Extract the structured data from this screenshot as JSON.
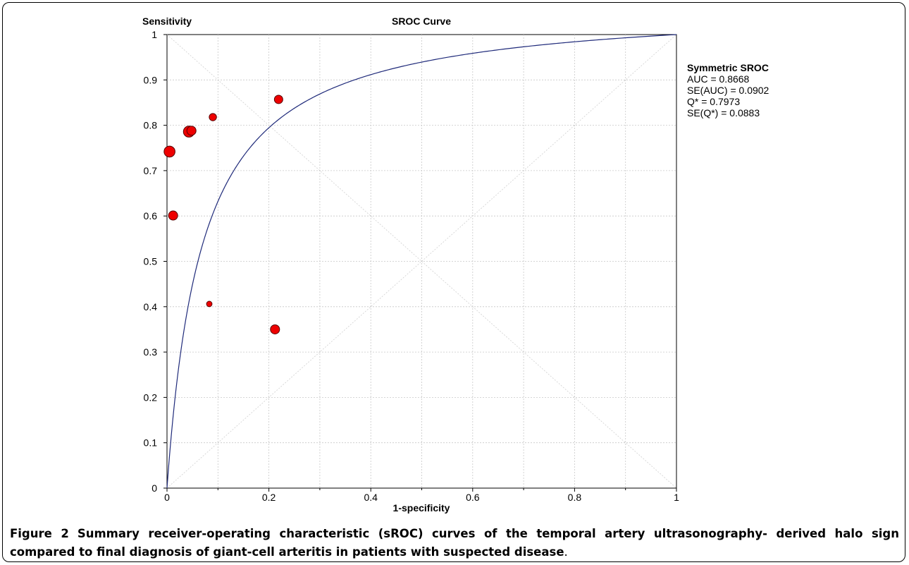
{
  "chart_data": {
    "type": "scatter",
    "title": "SROC Curve",
    "ylabel": "Sensitivity",
    "xlabel": "1-specificity",
    "xlim": [
      0,
      1
    ],
    "ylim": [
      0,
      1
    ],
    "grid": true,
    "x_ticks": [
      "0",
      "0.2",
      "0.4",
      "0.6",
      "0.8",
      "1"
    ],
    "y_ticks": [
      "0",
      "0.1",
      "0.2",
      "0.3",
      "0.4",
      "0.5",
      "0.6",
      "0.7",
      "0.8",
      "0.9",
      "1"
    ],
    "points": [
      {
        "x": 0.005,
        "y": 0.742,
        "size": 3
      },
      {
        "x": 0.012,
        "y": 0.601,
        "size": 2.5
      },
      {
        "x": 0.043,
        "y": 0.786,
        "size": 3
      },
      {
        "x": 0.048,
        "y": 0.788,
        "size": 2.5
      },
      {
        "x": 0.09,
        "y": 0.818,
        "size": 2
      },
      {
        "x": 0.083,
        "y": 0.406,
        "size": 1.5
      },
      {
        "x": 0.212,
        "y": 0.35,
        "size": 2.5
      },
      {
        "x": 0.219,
        "y": 0.857,
        "size": 2.3
      }
    ],
    "curve": {
      "type": "symmetric-sroc",
      "auc": 0.8668
    },
    "stats": {
      "title": "Symmetric SROC",
      "lines": [
        "AUC = 0.8668",
        "SE(AUC) = 0.0902",
        "Q* = 0.7973",
        "SE(Q*) = 0.0883"
      ]
    },
    "colors": {
      "point": "#ee0000",
      "curve": "#1f2a7a",
      "grid": "#c8c8c8"
    }
  },
  "caption": {
    "label": "Figure 2",
    "text": "Summary receiver-operating characteristic (sROC) curves of the temporal artery ultrasonography- derived halo sign compared to final diagnosis of giant-cell arteritis in patients with suspected disease",
    "end": "."
  }
}
